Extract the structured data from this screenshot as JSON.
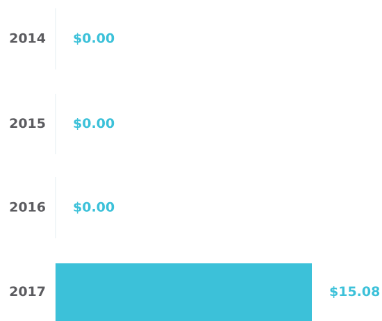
{
  "chart_data": {
    "type": "bar",
    "orientation": "horizontal",
    "categories": [
      "2014",
      "2015",
      "2016",
      "2017"
    ],
    "values": [
      0,
      0,
      0,
      15.08
    ],
    "value_labels": [
      "$0.00",
      "$0.00",
      "$0.00",
      "$15.08"
    ],
    "color": "#3cc1d9"
  }
}
